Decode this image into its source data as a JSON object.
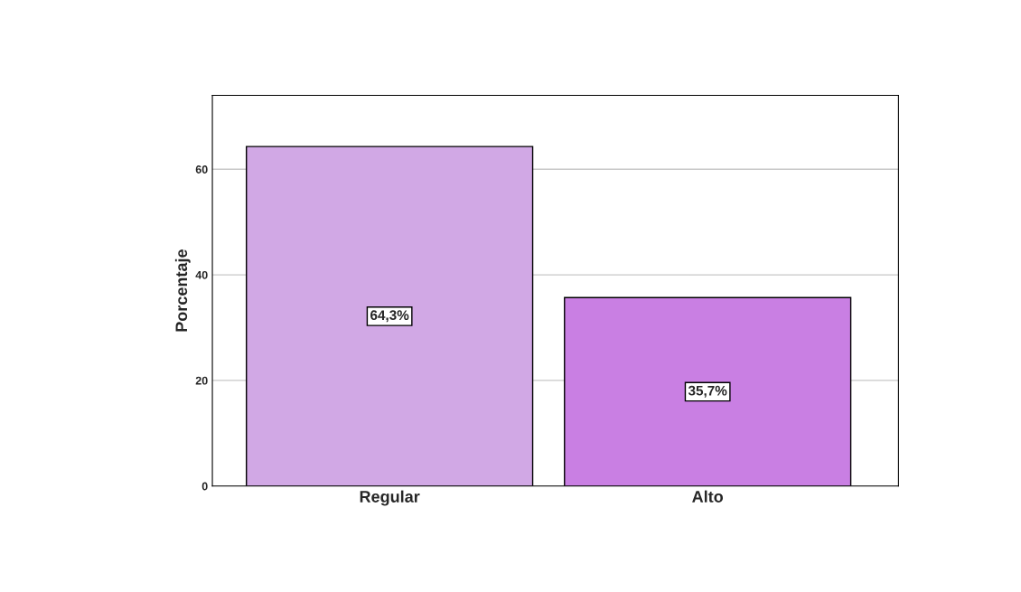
{
  "chart_data": {
    "type": "bar",
    "ylabel": "Porcentaje",
    "categories": [
      "Regular",
      "Alto"
    ],
    "values": [
      64.3,
      35.7
    ],
    "colors": [
      "#d1a8e5",
      "#c97fe3"
    ],
    "value_labels": [
      "64,3%",
      "35,7%"
    ],
    "ylim": [
      0,
      74
    ],
    "yticks": [
      0,
      20,
      40,
      60
    ],
    "grid": "y"
  }
}
